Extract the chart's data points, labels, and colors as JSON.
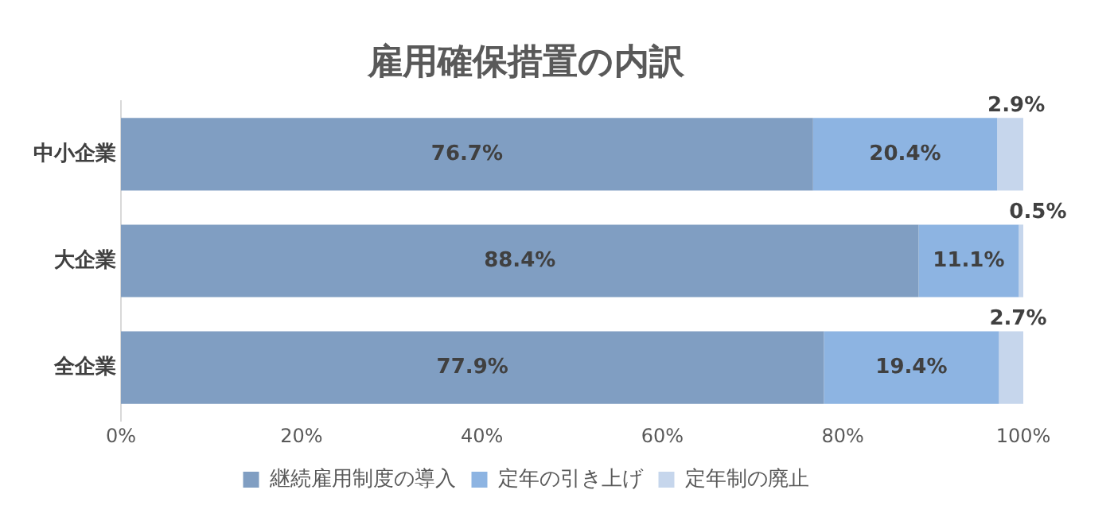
{
  "chart_data": {
    "type": "bar",
    "orientation": "horizontal",
    "stacked": true,
    "title": "雇用確保措置の内訳",
    "categories": [
      "中小企業",
      "大企業",
      "全企業"
    ],
    "series": [
      {
        "name": "継続雇用制度の導入",
        "color": "#809ec2",
        "values": [
          76.7,
          88.4,
          77.9
        ],
        "value_labels": [
          "76.7%",
          "88.4%",
          "77.9%"
        ]
      },
      {
        "name": "定年の引き上げ",
        "color": "#8db4e2",
        "values": [
          20.4,
          11.1,
          19.4
        ],
        "value_labels": [
          "20.4%",
          "11.1%",
          "19.4%"
        ]
      },
      {
        "name": "定年制の廃止",
        "color": "#c6d6ec",
        "values": [
          2.9,
          0.5,
          2.7
        ],
        "value_labels": [
          "2.9%",
          "0.5%",
          "2.7%"
        ]
      }
    ],
    "xlim": [
      0,
      100
    ],
    "xticks": [
      {
        "value": 0,
        "label": "0%"
      },
      {
        "value": 20,
        "label": "20%"
      },
      {
        "value": 40,
        "label": "40%"
      },
      {
        "value": 60,
        "label": "60%"
      },
      {
        "value": 80,
        "label": "80%"
      },
      {
        "value": 100,
        "label": "100%"
      }
    ],
    "grid": false,
    "legend": "bottom"
  }
}
